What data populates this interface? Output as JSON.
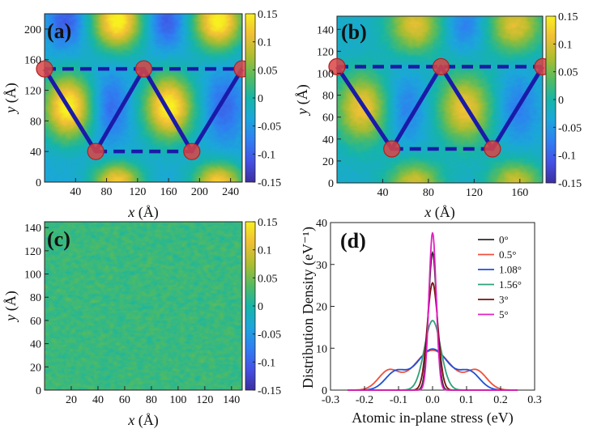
{
  "chart_data": [
    {
      "panel": "a",
      "panel_label": "(a)",
      "type": "heatmap",
      "xlabel": "x (Å)",
      "xlabel_var": "x",
      "xlabel_unit": "(Å)",
      "ylabel": "y (Å)",
      "ylabel_var": "y",
      "ylabel_unit": "(Å)",
      "xlim": [
        0,
        255
      ],
      "ylim": [
        0,
        220
      ],
      "xticks": [
        40,
        80,
        120,
        160,
        200,
        240
      ],
      "yticks": [
        0,
        40,
        80,
        120,
        160,
        200
      ],
      "colorbar": {
        "ticks": [
          0.15,
          0.1,
          0.05,
          0,
          -0.05,
          -0.1,
          -0.15
        ],
        "tick_labels": [
          "0.15",
          "0.1",
          "0.05",
          "0",
          "-0.05",
          "-0.1",
          "-0.15"
        ],
        "range": [
          -0.15,
          0.15
        ]
      },
      "field": {
        "base": -0.035,
        "blobs": [
          {
            "x": 30,
            "y": 98,
            "sx": 22,
            "sy": 30,
            "v": 0.19
          },
          {
            "x": 160,
            "y": 98,
            "sx": 22,
            "sy": 30,
            "v": 0.19
          },
          {
            "x": 85,
            "y": 98,
            "sx": 16,
            "sy": 30,
            "v": -0.06
          },
          {
            "x": 232,
            "y": 98,
            "sx": 16,
            "sy": 30,
            "v": -0.06
          },
          {
            "x": 94,
            "y": 210,
            "sx": 22,
            "sy": 26,
            "v": 0.19
          },
          {
            "x": 224,
            "y": 210,
            "sx": 22,
            "sy": 26,
            "v": 0.19
          },
          {
            "x": 158,
            "y": 210,
            "sx": 16,
            "sy": 24,
            "v": -0.07
          },
          {
            "x": 28,
            "y": 210,
            "sx": 16,
            "sy": 24,
            "v": -0.07
          },
          {
            "x": 94,
            "y": 0,
            "sx": 22,
            "sy": 18,
            "v": 0.16
          },
          {
            "x": 224,
            "y": 0,
            "sx": 22,
            "sy": 18,
            "v": 0.16
          }
        ]
      },
      "moire_points": [
        [
          0,
          148
        ],
        [
          66,
          40
        ],
        [
          128,
          148
        ],
        [
          190,
          40
        ],
        [
          255,
          148
        ]
      ],
      "dashed_lines": [
        [
          [
            0,
            148
          ],
          [
            255,
            148
          ]
        ],
        [
          [
            66,
            40
          ],
          [
            190,
            40
          ]
        ]
      ]
    },
    {
      "panel": "b",
      "panel_label": "(b)",
      "type": "heatmap",
      "xlabel": "x (Å)",
      "xlabel_var": "x",
      "xlabel_unit": "(Å)",
      "ylabel": "y (Å)",
      "ylabel_var": "y",
      "ylabel_unit": "(Å)",
      "xlim": [
        0,
        180
      ],
      "ylim": [
        0,
        152
      ],
      "xticks": [
        40,
        80,
        120,
        160
      ],
      "yticks": [
        0,
        20,
        40,
        60,
        80,
        100,
        120,
        140
      ],
      "colorbar": {
        "ticks": [
          0.15,
          0.1,
          0.05,
          0,
          -0.05,
          -0.1,
          -0.15
        ],
        "tick_labels": [
          "0.15",
          "0.1",
          "0.05",
          "0",
          "-0.05",
          "-0.1",
          "-0.15"
        ],
        "range": [
          -0.15,
          0.15
        ]
      },
      "field": {
        "base": -0.025,
        "blobs": [
          {
            "x": 22,
            "y": 68,
            "sx": 16,
            "sy": 22,
            "v": 0.14
          },
          {
            "x": 112,
            "y": 68,
            "sx": 16,
            "sy": 22,
            "v": 0.14
          },
          {
            "x": 60,
            "y": 68,
            "sx": 12,
            "sy": 22,
            "v": -0.05
          },
          {
            "x": 158,
            "y": 68,
            "sx": 12,
            "sy": 22,
            "v": -0.05
          },
          {
            "x": 68,
            "y": 144,
            "sx": 16,
            "sy": 18,
            "v": 0.13
          },
          {
            "x": 156,
            "y": 144,
            "sx": 16,
            "sy": 18,
            "v": 0.13
          },
          {
            "x": 112,
            "y": 144,
            "sx": 12,
            "sy": 16,
            "v": -0.05
          },
          {
            "x": 68,
            "y": 0,
            "sx": 16,
            "sy": 14,
            "v": 0.12
          },
          {
            "x": 156,
            "y": 0,
            "sx": 16,
            "sy": 14,
            "v": 0.12
          }
        ]
      },
      "moire_points": [
        [
          0,
          106
        ],
        [
          48,
          31
        ],
        [
          91,
          106
        ],
        [
          136,
          31
        ],
        [
          180,
          106
        ]
      ],
      "dashed_lines": [
        [
          [
            0,
            106
          ],
          [
            180,
            106
          ]
        ],
        [
          [
            48,
            31
          ],
          [
            136,
            31
          ]
        ]
      ]
    },
    {
      "panel": "c",
      "panel_label": "(c)",
      "type": "heatmap",
      "xlabel": "x (Å)",
      "xlabel_var": "x",
      "xlabel_unit": "(Å)",
      "ylabel": "y (Å)",
      "ylabel_var": "y",
      "ylabel_unit": "(Å)",
      "xlim": [
        0,
        148
      ],
      "ylim": [
        0,
        145
      ],
      "xticks": [
        20,
        40,
        60,
        80,
        100,
        120,
        140
      ],
      "yticks": [
        0,
        20,
        40,
        60,
        80,
        100,
        120,
        140
      ],
      "colorbar": {
        "ticks": [
          0.15,
          0.1,
          0.05,
          0,
          -0.05,
          -0.1,
          -0.15
        ],
        "tick_labels": [
          "0.15",
          "0.1",
          "0.05",
          "0",
          "-0.05",
          "-0.1",
          "-0.15"
        ],
        "range": [
          -0.15,
          0.15
        ]
      },
      "field": {
        "base": 0.022,
        "noise": 0.012,
        "blobs": []
      }
    },
    {
      "panel": "d",
      "panel_label": "(d)",
      "type": "line",
      "xlabel": "Atomic in-plane stress (eV)",
      "ylabel": "Distribution Density (eV⁻¹)",
      "xlim": [
        -0.3,
        0.3
      ],
      "ylim": [
        0,
        40
      ],
      "xticks": [
        -0.3,
        -0.2,
        -0.1,
        0.0,
        0.1,
        0.2,
        0.3
      ],
      "xtick_labels": [
        "-0.3",
        "-0.2",
        "-0.1",
        "0.0",
        "0.1",
        "0.2",
        "0.3"
      ],
      "yticks": [
        0,
        10,
        20,
        30,
        40
      ],
      "ytick_labels": [
        "0",
        "10",
        "20",
        "30",
        "40"
      ],
      "legend_position": "top-right",
      "series": [
        {
          "name": "0°",
          "color": "#2b2b2b",
          "peak": 32.8,
          "sigma": 0.0121
        },
        {
          "name": "0.5°",
          "color": "#f0503c",
          "peak": 9.5,
          "sigma": 0.055,
          "shoulder": {
            "offset": 0.13,
            "peak": 4.3,
            "sigma": 0.03
          }
        },
        {
          "name": "1.08°",
          "color": "#1f4fd8",
          "peak": 9.8,
          "sigma": 0.048,
          "shoulder": {
            "offset": 0.11,
            "peak": 4.0,
            "sigma": 0.03
          }
        },
        {
          "name": "1.56°",
          "color": "#2fa07a",
          "peak": 16.6,
          "sigma": 0.024
        },
        {
          "name": "3°",
          "color": "#7a1010",
          "peak": 25.6,
          "sigma": 0.0156
        },
        {
          "name": "5°",
          "color": "#e020c0",
          "peak": 37.6,
          "sigma": 0.0106
        }
      ]
    }
  ],
  "colors": {
    "moire_line": "#1a1aa8",
    "moire_point_fill": "#d94545",
    "moire_point_stroke": "#b02020"
  }
}
